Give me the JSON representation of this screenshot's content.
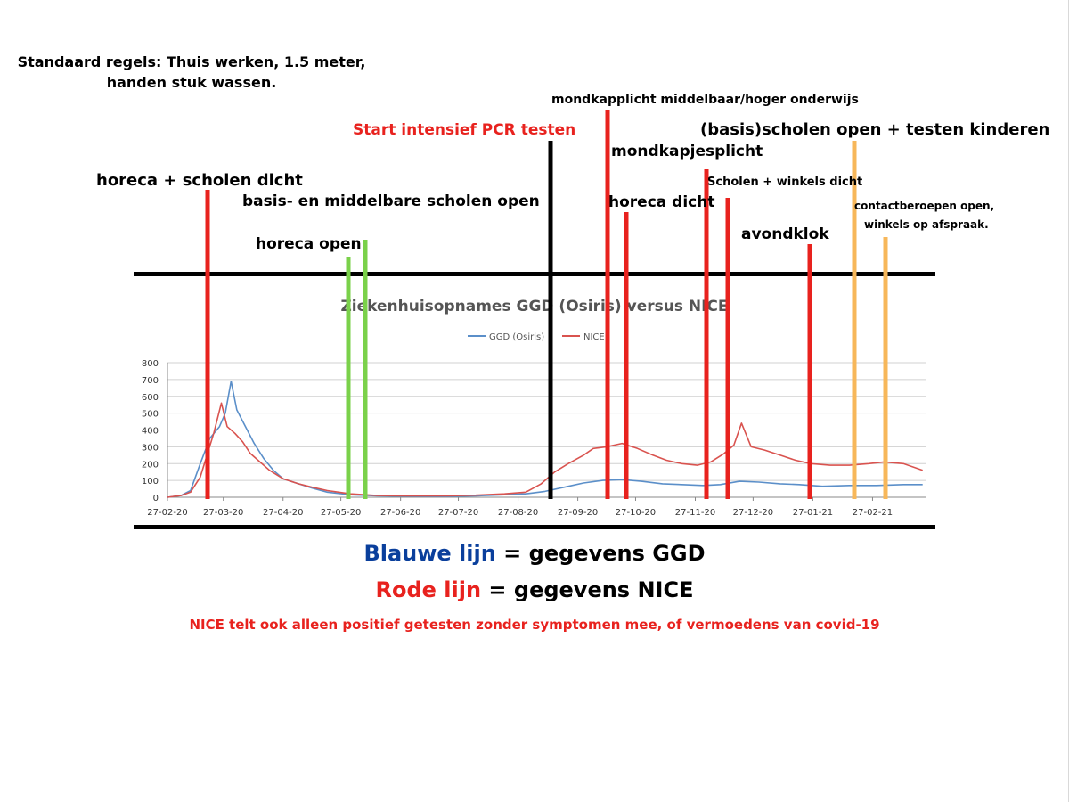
{
  "header_note": {
    "line1": "Standaard regels: Thuis werken, 1.5 meter,",
    "line2": "handen stuk wassen."
  },
  "annotations": [
    {
      "id": "horeca-scholen-dicht",
      "text": "horeca + scholen dicht",
      "color": "red"
    },
    {
      "id": "basis-middelbare-open",
      "text": "basis- en middelbare scholen open",
      "color": "black"
    },
    {
      "id": "horeca-open",
      "text": "horeca open",
      "color": "black"
    },
    {
      "id": "start-pcr",
      "text": "Start intensief PCR testen",
      "color": "red"
    },
    {
      "id": "mondkapplicht-mbo",
      "text": "mondkapplicht middelbaar/hoger onderwijs",
      "color": "black"
    },
    {
      "id": "mondkapjesplicht",
      "text": "mondkapjesplicht",
      "color": "black"
    },
    {
      "id": "horeca-dicht",
      "text": "horeca dicht",
      "color": "black"
    },
    {
      "id": "basisscholen-open",
      "text": "(basis)scholen open + testen kinderen",
      "color": "black"
    },
    {
      "id": "scholen-winkels-dicht",
      "text": "Scholen + winkels dicht",
      "color": "black"
    },
    {
      "id": "avondklok",
      "text": "avondklok",
      "color": "black"
    },
    {
      "id": "contactberoepen",
      "text": "contactberoepen open,",
      "color": "black"
    },
    {
      "id": "winkels-afspraak",
      "text": "winkels op afspraak.",
      "color": "black"
    }
  ],
  "legend_explanation": {
    "blue_label": "Blauwe lijn",
    "blue_rest": " = gegevens GGD",
    "red_label": "Rode lijn",
    "red_rest": " = gegevens NICE",
    "footnote": "NICE telt ook alleen positief getesten zonder symptomen mee, of vermoedens van covid-19"
  },
  "colors": {
    "ggd": "#5b8fc9",
    "nice": "#d9534f",
    "marker_red": "#e8221e",
    "marker_green": "#7ad14a",
    "marker_orange": "#f7b75a",
    "marker_black": "#000000",
    "grid": "#d0d0d0"
  },
  "chart_data": {
    "type": "line",
    "title": "Ziekenhuisopnames GGD (Osiris) versus NICE",
    "ylim": [
      0,
      800
    ],
    "yticks": [
      0,
      100,
      200,
      300,
      400,
      500,
      600,
      700,
      800
    ],
    "xticks": [
      "27-02-20",
      "27-03-20",
      "27-04-20",
      "27-05-20",
      "27-06-20",
      "27-07-20",
      "27-08-20",
      "27-09-20",
      "27-10-20",
      "27-11-20",
      "27-12-20",
      "27-01-21",
      "27-02-21"
    ],
    "x_start": "2020-02-27",
    "x_end": "2021-03-27",
    "series": [
      {
        "name": "GGD (Osiris)",
        "points": [
          [
            "2020-02-27",
            0
          ],
          [
            "2020-03-05",
            10
          ],
          [
            "2020-03-10",
            40
          ],
          [
            "2020-03-15",
            200
          ],
          [
            "2020-03-20",
            350
          ],
          [
            "2020-03-25",
            420
          ],
          [
            "2020-03-28",
            500
          ],
          [
            "2020-03-31",
            690
          ],
          [
            "2020-04-03",
            520
          ],
          [
            "2020-04-07",
            430
          ],
          [
            "2020-04-12",
            320
          ],
          [
            "2020-04-17",
            230
          ],
          [
            "2020-04-22",
            160
          ],
          [
            "2020-04-27",
            110
          ],
          [
            "2020-05-05",
            80
          ],
          [
            "2020-05-12",
            55
          ],
          [
            "2020-05-20",
            30
          ],
          [
            "2020-06-01",
            15
          ],
          [
            "2020-06-15",
            8
          ],
          [
            "2020-07-01",
            6
          ],
          [
            "2020-07-20",
            5
          ],
          [
            "2020-08-05",
            8
          ],
          [
            "2020-08-20",
            15
          ],
          [
            "2020-08-31",
            20
          ],
          [
            "2020-09-10",
            35
          ],
          [
            "2020-09-20",
            60
          ],
          [
            "2020-09-30",
            85
          ],
          [
            "2020-10-10",
            100
          ],
          [
            "2020-10-20",
            105
          ],
          [
            "2020-10-30",
            95
          ],
          [
            "2020-11-10",
            80
          ],
          [
            "2020-11-20",
            75
          ],
          [
            "2020-12-01",
            70
          ],
          [
            "2020-12-10",
            75
          ],
          [
            "2020-12-20",
            95
          ],
          [
            "2020-12-30",
            90
          ],
          [
            "2021-01-10",
            80
          ],
          [
            "2021-01-20",
            75
          ],
          [
            "2021-02-01",
            65
          ],
          [
            "2021-02-15",
            70
          ],
          [
            "2021-03-01",
            70
          ],
          [
            "2021-03-15",
            75
          ],
          [
            "2021-03-25",
            75
          ]
        ]
      },
      {
        "name": "NICE",
        "points": [
          [
            "2020-02-27",
            0
          ],
          [
            "2020-03-05",
            10
          ],
          [
            "2020-03-10",
            30
          ],
          [
            "2020-03-15",
            120
          ],
          [
            "2020-03-18",
            230
          ],
          [
            "2020-03-22",
            380
          ],
          [
            "2020-03-26",
            560
          ],
          [
            "2020-03-29",
            420
          ],
          [
            "2020-04-02",
            380
          ],
          [
            "2020-04-06",
            330
          ],
          [
            "2020-04-10",
            260
          ],
          [
            "2020-04-15",
            210
          ],
          [
            "2020-04-20",
            160
          ],
          [
            "2020-04-27",
            110
          ],
          [
            "2020-05-05",
            80
          ],
          [
            "2020-05-12",
            60
          ],
          [
            "2020-05-20",
            40
          ],
          [
            "2020-06-01",
            20
          ],
          [
            "2020-06-15",
            10
          ],
          [
            "2020-07-01",
            8
          ],
          [
            "2020-07-20",
            8
          ],
          [
            "2020-08-05",
            12
          ],
          [
            "2020-08-20",
            20
          ],
          [
            "2020-08-31",
            30
          ],
          [
            "2020-09-08",
            80
          ],
          [
            "2020-09-15",
            150
          ],
          [
            "2020-09-22",
            200
          ],
          [
            "2020-09-30",
            250
          ],
          [
            "2020-10-05",
            290
          ],
          [
            "2020-10-12",
            300
          ],
          [
            "2020-10-20",
            320
          ],
          [
            "2020-10-28",
            290
          ],
          [
            "2020-11-05",
            250
          ],
          [
            "2020-11-12",
            220
          ],
          [
            "2020-11-20",
            200
          ],
          [
            "2020-11-28",
            190
          ],
          [
            "2020-12-05",
            210
          ],
          [
            "2020-12-12",
            260
          ],
          [
            "2020-12-17",
            310
          ],
          [
            "2020-12-21",
            440
          ],
          [
            "2020-12-26",
            300
          ],
          [
            "2021-01-02",
            280
          ],
          [
            "2021-01-10",
            250
          ],
          [
            "2021-01-18",
            220
          ],
          [
            "2021-01-26",
            200
          ],
          [
            "2021-02-05",
            190
          ],
          [
            "2021-02-15",
            190
          ],
          [
            "2021-02-25",
            200
          ],
          [
            "2021-03-05",
            210
          ],
          [
            "2021-03-15",
            200
          ],
          [
            "2021-03-25",
            160
          ]
        ]
      }
    ]
  }
}
